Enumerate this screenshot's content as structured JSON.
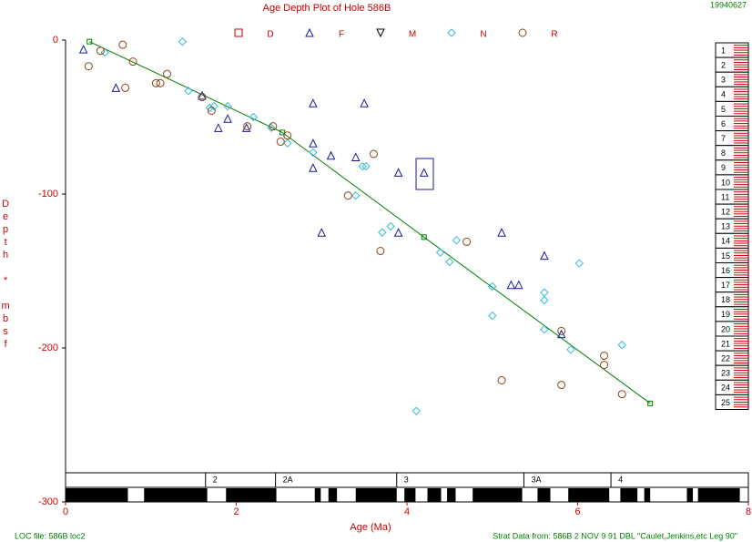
{
  "chart_data": {
    "type": "scatter",
    "title": "Age Depth Plot of Hole 586B",
    "date_stamp": "19940627",
    "xlabel": "Age (Ma)",
    "ylabel": "Depth * mbsf",
    "footer_left": "LOC file: 586B loc2",
    "footer_right": "Strat Data from: 586B 2 NOV 9 91 DBL  \"Caulet,Jenkins,etc Leg 90\"",
    "xlim": [
      0,
      8
    ],
    "xticks": [
      0,
      2,
      4,
      6,
      8
    ],
    "ylim": [
      -300,
      0
    ],
    "yticks": [
      0,
      -100,
      -200,
      -300
    ],
    "series": [
      {
        "name": "D",
        "marker": "square",
        "color": "#cc0000",
        "x": [],
        "values": []
      },
      {
        "name": "F",
        "marker": "triangle",
        "color": "#1a1aa0",
        "x": [
          0.21,
          0.59,
          1.6,
          1.79,
          1.9,
          2.12,
          2.9,
          2.9,
          2.9,
          3.0,
          3.11,
          3.4,
          3.5,
          3.9,
          3.9,
          4.2,
          5.11,
          5.22,
          5.31,
          5.61,
          5.81
        ],
        "values": [
          -6,
          -31,
          -36,
          -57,
          -51,
          -57,
          -41,
          -67,
          -83,
          -125,
          -75,
          -76,
          -41,
          -86,
          -125,
          -86,
          -125,
          -159,
          -159,
          -140,
          -191
        ]
      },
      {
        "name": "M",
        "marker": "triangle-down",
        "color": "#000000",
        "x": [],
        "values": []
      },
      {
        "name": "N",
        "marker": "diamond",
        "color": "#33bbdd",
        "x": [
          0.46,
          1.37,
          1.44,
          1.69,
          1.74,
          1.9,
          2.2,
          2.41,
          2.6,
          2.9,
          3.4,
          3.48,
          3.52,
          3.71,
          3.81,
          4.11,
          4.39,
          4.5,
          4.58,
          5.0,
          5.0,
          5.61,
          5.61,
          5.61,
          5.92,
          6.02,
          6.52
        ],
        "values": [
          -8,
          -1,
          -33,
          -44,
          -43,
          -43,
          -50,
          -57,
          -67,
          -73,
          -101,
          -82,
          -82,
          -125,
          -121,
          -241,
          -138,
          -144,
          -130,
          -160,
          -179,
          -164,
          -169,
          -188,
          -201,
          -145,
          -198
        ]
      },
      {
        "name": "R",
        "marker": "circle",
        "color": "#8b4513",
        "x": [
          0.27,
          0.41,
          0.67,
          0.7,
          0.79,
          1.06,
          1.11,
          1.19,
          1.6,
          1.71,
          2.13,
          2.43,
          2.52,
          2.6,
          3.31,
          3.61,
          3.69,
          4.7,
          5.11,
          5.81,
          5.81,
          6.31,
          6.31,
          6.52
        ],
        "values": [
          -17,
          -7,
          -3,
          -31,
          -14,
          -28,
          -28,
          -22,
          -37,
          -46,
          -56,
          -56,
          -66,
          -62,
          -101,
          -74,
          -137,
          -131,
          -221,
          -189,
          -224,
          -205,
          -211,
          -230
        ]
      }
    ],
    "loc_line": {
      "color": "#008000",
      "x": [
        0.28,
        2.54,
        4.2,
        6.85
      ],
      "values": [
        -1,
        -60,
        -128,
        -236
      ]
    },
    "cores": [
      "1",
      "2",
      "3",
      "4",
      "5",
      "6",
      "7",
      "8",
      "9",
      "10",
      "11",
      "12",
      "13",
      "14",
      "15",
      "16",
      "17",
      "18",
      "19",
      "20",
      "21",
      "22",
      "23",
      "24",
      "25"
    ],
    "chrons": [
      {
        "label": "2",
        "start": 1.64,
        "end": 2.46
      },
      {
        "label": "2A",
        "start": 2.46,
        "end": 3.88
      },
      {
        "label": "3",
        "start": 3.88,
        "end": 5.37
      },
      {
        "label": "3A",
        "start": 5.37,
        "end": 6.39
      },
      {
        "label": "4",
        "start": 6.39,
        "end": 8
      }
    ],
    "polarity_black": [
      [
        0,
        0.73
      ],
      [
        0.92,
        1.66
      ],
      [
        1.88,
        2.47
      ],
      [
        2.92,
        2.99
      ],
      [
        3.08,
        3.18
      ],
      [
        3.4,
        3.88
      ],
      [
        3.97,
        4.1
      ],
      [
        4.24,
        4.4
      ],
      [
        4.47,
        4.57
      ],
      [
        4.77,
        5.35
      ],
      [
        5.53,
        5.68
      ],
      [
        5.89,
        6.37
      ],
      [
        6.5,
        6.7
      ],
      [
        6.78,
        6.85
      ],
      [
        7.28,
        7.35
      ],
      [
        7.41,
        7.9
      ]
    ]
  }
}
